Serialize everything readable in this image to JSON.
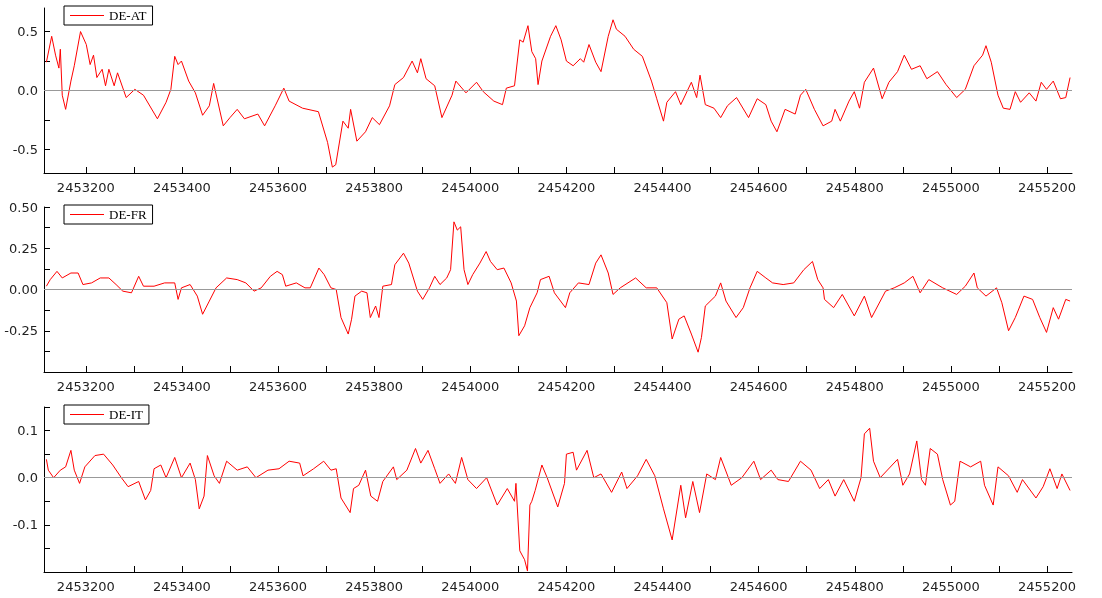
{
  "chart_data": [
    {
      "type": "line",
      "legend": "top left",
      "xlim": [
        2453113,
        2455252
      ],
      "ylim": [
        -0.7,
        0.7
      ],
      "xticks": [
        2453200,
        {
          "value": 2453300,
          "label": null
        },
        2453400,
        {
          "value": 2453500,
          "label": null
        },
        2453600,
        {
          "value": 2453700,
          "label": null
        },
        2453800,
        {
          "value": 2453900,
          "label": null
        },
        2454000,
        {
          "value": 2454100,
          "label": null
        },
        2454200,
        {
          "value": 2454300,
          "label": null
        },
        2454400,
        {
          "value": 2454500,
          "label": null
        },
        2454600,
        {
          "value": 2454700,
          "label": null
        },
        2454800,
        {
          "value": 2454900,
          "label": null
        },
        2455000,
        {
          "value": 2455100,
          "label": null
        },
        2455200
      ],
      "yticks": [
        -0.5,
        {
          "value": -0.25,
          "label": null
        },
        {
          "value": 0,
          "label": "0.0"
        },
        {
          "value": 0.25,
          "label": null
        },
        0.5
      ],
      "ref_lines": [
        {
          "axis": "y",
          "value": 0,
          "color": "#999999"
        }
      ],
      "series": [
        {
          "name": "DE-AT",
          "color": "#ff0000",
          "x": [
            2453118,
            2453129,
            2453137,
            2453144,
            2453147,
            2453151,
            2453158,
            2453169,
            2453176,
            2453189,
            2453201,
            2453209,
            2453216,
            2453223,
            2453234,
            2453241,
            2453248,
            2453259,
            2453266,
            2453284,
            2453302,
            2453320,
            2453349,
            2453367,
            2453377,
            2453385,
            2453392,
            2453399,
            2453414,
            2453428,
            2453443,
            2453457,
            2453466,
            2453486,
            2453500,
            2453515,
            2453530,
            2453558,
            2453572,
            2453594,
            2453612,
            2453623,
            2453651,
            2453684,
            2453703,
            2453713,
            2453720,
            2453735,
            2453746,
            2453751,
            2453764,
            2453782,
            2453796,
            2453811,
            2453832,
            2453843,
            2453861,
            2453879,
            2453890,
            2453897,
            2453908,
            2453926,
            2453941,
            2453962,
            2453970,
            2453991,
            2454013,
            2454027,
            2454049,
            2454067,
            2454075,
            2454092,
            2454103,
            2454110,
            2454120,
            2454128,
            2454136,
            2454141,
            2454149,
            2454167,
            2454178,
            2454189,
            2454200,
            2454214,
            2454229,
            2454236,
            2454247,
            2454261,
            2454272,
            2454287,
            2454297,
            2454304,
            2454322,
            2454340,
            2454358,
            2454377,
            2454388,
            2454402,
            2454409,
            2454427,
            2454438,
            2454460,
            2454471,
            2454478,
            2454489,
            2454507,
            2454521,
            2454535,
            2454554,
            2454579,
            2454597,
            2454615,
            2454626,
            2454638,
            2454655,
            2454676,
            2454687,
            2454698,
            2454716,
            2454734,
            2454752,
            2454759,
            2454770,
            2454788,
            2454799,
            2454810,
            2454820,
            2454839,
            2454857,
            2454871,
            2454889,
            2454903,
            2454918,
            2454936,
            2454950,
            2454972,
            2454990,
            2455012,
            2455030,
            2455048,
            2455066,
            2455073,
            2455084,
            2455098,
            2455109,
            2455123,
            2455134,
            2455145,
            2455163,
            2455177,
            2455188,
            2455199,
            2455213,
            2455228,
            2455239,
            2455248
          ],
          "values": [
            0.24,
            0.46,
            0.3,
            0.19,
            0.35,
            -0.04,
            -0.16,
            0.08,
            0.21,
            0.5,
            0.39,
            0.22,
            0.3,
            0.11,
            0.18,
            0.04,
            0.18,
            0.04,
            0.15,
            -0.06,
            0.01,
            -0.04,
            -0.24,
            -0.1,
            0.01,
            0.29,
            0.22,
            0.25,
            0.08,
            -0.02,
            -0.21,
            -0.13,
            0.06,
            -0.3,
            -0.23,
            -0.16,
            -0.24,
            -0.2,
            -0.3,
            -0.13,
            0.02,
            -0.09,
            -0.15,
            -0.18,
            -0.44,
            -0.65,
            -0.63,
            -0.26,
            -0.32,
            -0.16,
            -0.43,
            -0.35,
            -0.23,
            -0.29,
            -0.13,
            0.05,
            0.11,
            0.25,
            0.15,
            0.27,
            0.1,
            0.04,
            -0.23,
            -0.04,
            0.08,
            -0.02,
            0.07,
            -0.01,
            -0.09,
            -0.12,
            0.02,
            0.04,
            0.43,
            0.41,
            0.55,
            0.33,
            0.27,
            0.05,
            0.25,
            0.46,
            0.55,
            0.43,
            0.25,
            0.21,
            0.27,
            0.24,
            0.39,
            0.24,
            0.16,
            0.46,
            0.6,
            0.52,
            0.46,
            0.35,
            0.29,
            0.08,
            -0.07,
            -0.26,
            -0.1,
            -0.01,
            -0.12,
            0.07,
            -0.06,
            0.13,
            -0.12,
            -0.15,
            -0.23,
            -0.13,
            -0.06,
            -0.23,
            -0.07,
            -0.12,
            -0.26,
            -0.35,
            -0.16,
            -0.2,
            -0.04,
            0.01,
            -0.16,
            -0.3,
            -0.26,
            -0.16,
            -0.26,
            -0.09,
            -0.01,
            -0.15,
            0.07,
            0.19,
            -0.07,
            0.07,
            0.16,
            0.3,
            0.18,
            0.21,
            0.1,
            0.16,
            0.05,
            -0.06,
            0.01,
            0.21,
            0.3,
            0.38,
            0.24,
            -0.04,
            -0.15,
            -0.16,
            -0.01,
            -0.1,
            -0.02,
            -0.09,
            0.07,
            0.01,
            0.08,
            -0.07,
            -0.06,
            0.11
          ]
        }
      ]
    },
    {
      "type": "line",
      "legend": "top left",
      "xlim": [
        2453113,
        2455252
      ],
      "ylim": [
        -0.5,
        0.5
      ],
      "xticks": [
        2453200,
        {
          "value": 2453300,
          "label": null
        },
        2453400,
        {
          "value": 2453500,
          "label": null
        },
        2453600,
        {
          "value": 2453700,
          "label": null
        },
        2453800,
        {
          "value": 2453900,
          "label": null
        },
        2454000,
        {
          "value": 2454100,
          "label": null
        },
        2454200,
        {
          "value": 2454300,
          "label": null
        },
        2454400,
        {
          "value": 2454500,
          "label": null
        },
        2454600,
        {
          "value": 2454700,
          "label": null
        },
        2454800,
        {
          "value": 2454900,
          "label": null
        },
        2455000,
        {
          "value": 2455100,
          "label": null
        },
        2455200
      ],
      "yticks": [
        {
          "value": -0.375,
          "label": null
        },
        -0.25,
        {
          "value": -0.125,
          "label": null
        },
        {
          "value": 0,
          "label": "0.00"
        },
        {
          "value": 0.125,
          "label": null
        },
        0.25,
        {
          "value": 0.375,
          "label": null
        },
        {
          "value": 0.5,
          "label": "0.50"
        }
      ],
      "ref_lines": [
        {
          "axis": "y",
          "value": 0,
          "color": "#999999"
        }
      ],
      "series": [
        {
          "name": "DE-FR",
          "color": "#ff0000",
          "x": [
            2453118,
            2453126,
            2453140,
            2453151,
            2453169,
            2453184,
            2453194,
            2453212,
            2453230,
            2453248,
            2453263,
            2453277,
            2453295,
            2453310,
            2453320,
            2453342,
            2453364,
            2453385,
            2453392,
            2453399,
            2453417,
            2453432,
            2453443,
            2453457,
            2453471,
            2453493,
            2453515,
            2453533,
            2453550,
            2453565,
            2453584,
            2453598,
            2453609,
            2453616,
            2453638,
            2453656,
            2453667,
            2453685,
            2453696,
            2453710,
            2453721,
            2453731,
            2453746,
            2453753,
            2453760,
            2453774,
            2453785,
            2453792,
            2453803,
            2453810,
            2453818,
            2453836,
            2453843,
            2453861,
            2453872,
            2453890,
            2453901,
            2453915,
            2453926,
            2453937,
            2453951,
            2453959,
            2453966,
            2453973,
            2453980,
            2453987,
            2453995,
            2454005,
            2454020,
            2454033,
            2454042,
            2454056,
            2454070,
            2454085,
            2454096,
            2454101,
            2454113,
            2454124,
            2454139,
            2454146,
            2454164,
            2454175,
            2454198,
            2454207,
            2454225,
            2454247,
            2454261,
            2454272,
            2454287,
            2454297,
            2454312,
            2454344,
            2454366,
            2454388,
            2454409,
            2454420,
            2454434,
            2454445,
            2454460,
            2454474,
            2454481,
            2454489,
            2454510,
            2454521,
            2454532,
            2454553,
            2454568,
            2454582,
            2454597,
            2454615,
            2454629,
            2454651,
            2454673,
            2454694,
            2454712,
            2454723,
            2454734,
            2454737,
            2454756,
            2454774,
            2454799,
            2454820,
            2454835,
            2454864,
            2454882,
            2454903,
            2454921,
            2454936,
            2454954,
            2454983,
            2455012,
            2455030,
            2455048,
            2455055,
            2455073,
            2455095,
            2455106,
            2455120,
            2455134,
            2455152,
            2455170,
            2455185,
            2455199,
            2455213,
            2455224,
            2455239,
            2455248
          ],
          "values": [
            0.02,
            0.06,
            0.11,
            0.07,
            0.1,
            0.1,
            0.03,
            0.04,
            0.07,
            0.07,
            0.03,
            -0.01,
            -0.02,
            0.08,
            0.02,
            0.02,
            0.04,
            0.04,
            -0.06,
            0.01,
            0.03,
            -0.04,
            -0.15,
            -0.07,
            0.01,
            0.07,
            0.06,
            0.04,
            -0.01,
            0.01,
            0.08,
            0.11,
            0.09,
            0.02,
            0.04,
            0.01,
            0.01,
            0.13,
            0.09,
            0.01,
            0.0,
            -0.17,
            -0.27,
            -0.18,
            -0.04,
            -0.01,
            -0.02,
            -0.17,
            -0.1,
            -0.17,
            0.02,
            0.03,
            0.15,
            0.22,
            0.16,
            -0.01,
            -0.06,
            0.01,
            0.08,
            0.03,
            0.07,
            0.12,
            0.41,
            0.36,
            0.38,
            0.12,
            0.03,
            0.09,
            0.16,
            0.23,
            0.17,
            0.12,
            0.13,
            0.04,
            -0.07,
            -0.28,
            -0.22,
            -0.11,
            -0.02,
            0.06,
            0.08,
            -0.02,
            -0.11,
            -0.02,
            0.04,
            0.03,
            0.16,
            0.21,
            0.1,
            -0.03,
            0.01,
            0.07,
            0.01,
            0.01,
            -0.08,
            -0.3,
            -0.18,
            -0.16,
            -0.27,
            -0.38,
            -0.29,
            -0.1,
            -0.04,
            0.04,
            -0.07,
            -0.17,
            -0.11,
            0.01,
            0.11,
            0.07,
            0.04,
            0.03,
            0.04,
            0.12,
            0.17,
            0.06,
            0.01,
            -0.06,
            -0.11,
            -0.03,
            -0.16,
            -0.04,
            -0.17,
            -0.01,
            0.01,
            0.04,
            0.08,
            -0.02,
            0.06,
            0.01,
            -0.03,
            0.02,
            0.1,
            0.01,
            -0.04,
            0.01,
            -0.08,
            -0.25,
            -0.17,
            -0.04,
            -0.06,
            -0.17,
            -0.26,
            -0.11,
            -0.18,
            -0.06,
            -0.07
          ]
        }
      ]
    },
    {
      "type": "line",
      "legend": "top left",
      "xlim": [
        2453113,
        2455252
      ],
      "ylim": [
        -0.2,
        0.15
      ],
      "xticks": [
        2453200,
        {
          "value": 2453300,
          "label": null
        },
        2453400,
        {
          "value": 2453500,
          "label": null
        },
        2453600,
        {
          "value": 2453700,
          "label": null
        },
        2453800,
        {
          "value": 2453900,
          "label": null
        },
        2454000,
        {
          "value": 2454100,
          "label": null
        },
        2454200,
        {
          "value": 2454300,
          "label": null
        },
        2454400,
        {
          "value": 2454500,
          "label": null
        },
        2454600,
        {
          "value": 2454700,
          "label": null
        },
        2454800,
        {
          "value": 2454900,
          "label": null
        },
        2455000,
        {
          "value": 2455100,
          "label": null
        },
        2455200
      ],
      "yticks": [
        {
          "value": -0.15,
          "label": null
        },
        -0.1,
        {
          "value": -0.05,
          "label": null
        },
        {
          "value": 0,
          "label": "0.0"
        },
        {
          "value": 0.05,
          "label": null
        },
        0.1,
        {
          "value": 0.15,
          "label": null
        }
      ],
      "ref_lines": [
        {
          "axis": "y",
          "value": 0,
          "color": "#999999"
        }
      ],
      "series": [
        {
          "name": "DE-IT",
          "color": "#ff0000",
          "x": [
            2453118,
            2453122,
            2453133,
            2453147,
            2453158,
            2453169,
            2453176,
            2453187,
            2453198,
            2453219,
            2453237,
            2453256,
            2453274,
            2453288,
            2453310,
            2453324,
            2453335,
            2453342,
            2453356,
            2453367,
            2453385,
            2453399,
            2453417,
            2453428,
            2453436,
            2453446,
            2453453,
            2453467,
            2453478,
            2453493,
            2453515,
            2453536,
            2453554,
            2453579,
            2453602,
            2453623,
            2453645,
            2453652,
            2453674,
            2453695,
            2453710,
            2453721,
            2453731,
            2453750,
            2453757,
            2453768,
            2453782,
            2453793,
            2453807,
            2453818,
            2453840,
            2453847,
            2453868,
            2453886,
            2453897,
            2453912,
            2453926,
            2453937,
            2453955,
            2453969,
            2453982,
            2453995,
            2454013,
            2454034,
            2454056,
            2454077,
            2454092,
            2454095,
            2454103,
            2454113,
            2454119,
            2454124,
            2454128,
            2454135,
            2454149,
            2454160,
            2454182,
            2454196,
            2454200,
            2454214,
            2454221,
            2454243,
            2454257,
            2454272,
            2454294,
            2454315,
            2454326,
            2454348,
            2454366,
            2454384,
            2454402,
            2454420,
            2454438,
            2454448,
            2454463,
            2454477,
            2454492,
            2454510,
            2454521,
            2454543,
            2454565,
            2454590,
            2454604,
            2454626,
            2454640,
            2454662,
            2454687,
            2454709,
            2454727,
            2454745,
            2454759,
            2454777,
            2454799,
            2454813,
            2454820,
            2454831,
            2454839,
            2454853,
            2454889,
            2454900,
            2454914,
            2454929,
            2454939,
            2454947,
            2454957,
            2454972,
            2454983,
            2454999,
            2455008,
            2455019,
            2455041,
            2455062,
            2455070,
            2455088,
            2455098,
            2455120,
            2455138,
            2455149,
            2455177,
            2455192,
            2455206,
            2455221,
            2455231,
            2455248
          ],
          "values": [
            0.039,
            0.016,
            0.0,
            0.016,
            0.023,
            0.058,
            0.016,
            -0.012,
            0.023,
            0.047,
            0.05,
            0.027,
            0.0,
            -0.019,
            -0.008,
            -0.047,
            -0.027,
            0.019,
            0.027,
            0.0,
            0.043,
            0.0,
            0.031,
            -0.004,
            -0.066,
            -0.039,
            0.047,
            0.004,
            -0.012,
            0.035,
            0.016,
            0.023,
            0.0,
            0.016,
            0.019,
            0.035,
            0.031,
            0.004,
            0.019,
            0.035,
            0.016,
            0.019,
            -0.043,
            -0.074,
            -0.023,
            -0.016,
            0.016,
            -0.039,
            -0.05,
            -0.008,
            0.023,
            -0.004,
            0.016,
            0.062,
            0.031,
            0.058,
            0.019,
            -0.012,
            0.008,
            -0.012,
            0.043,
            -0.004,
            -0.023,
            0.0,
            -0.058,
            -0.023,
            -0.05,
            -0.012,
            -0.155,
            -0.174,
            -0.198,
            -0.058,
            -0.05,
            -0.027,
            0.027,
            0.0,
            -0.062,
            -0.012,
            0.05,
            0.054,
            0.016,
            0.058,
            0.0,
            0.008,
            -0.031,
            0.012,
            -0.023,
            0.004,
            0.039,
            0.004,
            -0.066,
            -0.132,
            -0.016,
            -0.085,
            -0.008,
            -0.074,
            0.008,
            -0.004,
            0.043,
            -0.016,
            0.0,
            0.035,
            -0.004,
            0.016,
            -0.004,
            -0.008,
            0.035,
            0.016,
            -0.023,
            -0.004,
            -0.039,
            -0.004,
            -0.05,
            0.0,
            0.093,
            0.105,
            0.035,
            0.0,
            0.039,
            -0.016,
            0.008,
            0.078,
            -0.004,
            -0.016,
            0.062,
            0.05,
            -0.004,
            -0.058,
            -0.05,
            0.035,
            0.023,
            0.035,
            -0.016,
            -0.058,
            0.023,
            0.004,
            -0.031,
            -0.004,
            -0.043,
            -0.019,
            0.019,
            -0.023,
            0.008,
            -0.027
          ]
        }
      ]
    }
  ]
}
